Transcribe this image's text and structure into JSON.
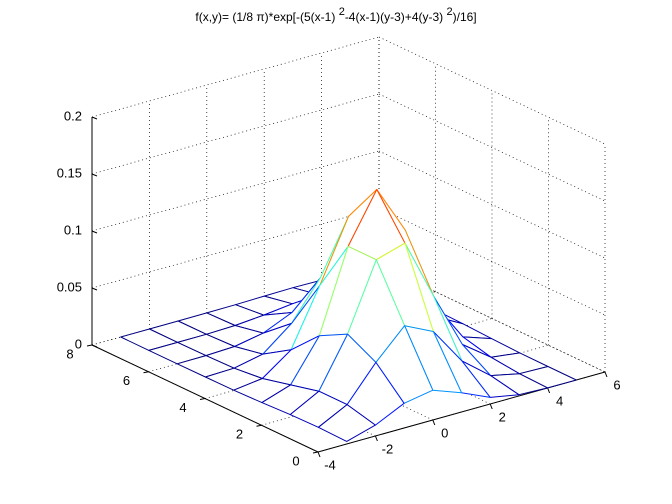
{
  "chart_data": {
    "type": "mesh",
    "title": [
      "f(x,y)= (1/8  π)*exp[-(5(x-1) ",
      "2",
      "-4(x-1)(y-3)+4(y-3)  ",
      "2",
      ")/16]"
    ],
    "x": [
      -3,
      -2,
      -1,
      0,
      1,
      2,
      3,
      4,
      5
    ],
    "y": [
      0,
      1,
      2,
      3,
      4,
      5,
      6,
      7,
      8
    ],
    "z": [
      [
        0.0023,
        0.0096,
        0.0217,
        0.0261,
        0.0169,
        0.0058,
        0.0011,
        0.0001,
        0
      ],
      [
        0.0029,
        0.0158,
        0.0458,
        0.071,
        0.0589,
        0.0261,
        0.0062,
        0.0008,
        0.0001
      ],
      [
        0.0023,
        0.0158,
        0.0589,
        0.1171,
        0.1246,
        0.071,
        0.0217,
        0.0035,
        0.0003
      ],
      [
        0.0011,
        0.0096,
        0.0458,
        0.1171,
        0.16,
        0.1171,
        0.0458,
        0.0096,
        0.0011
      ],
      [
        0.0003,
        0.0035,
        0.0217,
        0.071,
        0.1246,
        0.1171,
        0.0589,
        0.0158,
        0.0023
      ],
      [
        0.0001,
        0.0008,
        0.0062,
        0.0261,
        0.0589,
        0.071,
        0.0458,
        0.0158,
        0.0029
      ],
      [
        0,
        0.0001,
        0.0011,
        0.0058,
        0.0169,
        0.0261,
        0.0217,
        0.0096,
        0.0023
      ],
      [
        0,
        0,
        0.0001,
        0.0008,
        0.0029,
        0.0058,
        0.0062,
        0.0035,
        0.0011
      ],
      [
        0,
        0,
        0,
        0.0001,
        0.0003,
        0.0008,
        0.0011,
        0.0008,
        0.0003
      ]
    ],
    "xlim": [
      -4,
      6
    ],
    "xticks": [
      -4,
      -2,
      0,
      2,
      4,
      6
    ],
    "ylim": [
      0,
      8
    ],
    "yticks": [
      0,
      2,
      4,
      6,
      8
    ],
    "zlim": [
      0,
      0.2
    ],
    "zticks": [
      0,
      0.05,
      0.1,
      0.15,
      0.2
    ],
    "grid": true,
    "colormap": "jet"
  }
}
